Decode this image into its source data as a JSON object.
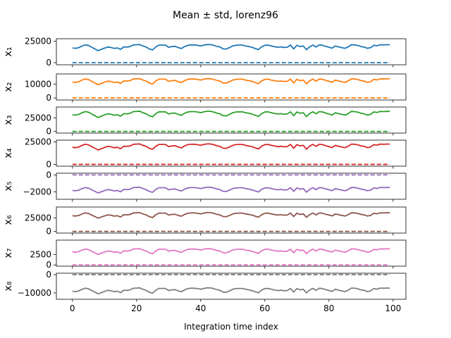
{
  "title": "Mean ± std, lorenz96",
  "xlabel": "Integration time index",
  "x_ticks": [
    0,
    20,
    40,
    60,
    80,
    100
  ],
  "colors": {
    "x1": "#1f77b4",
    "x2": "#ff7f0e",
    "x3": "#2ca02c",
    "x4": "#d62728",
    "x5": "#9467bd",
    "x6": "#8c564b",
    "x7": "#e377c2",
    "x8": "#7f7f7f"
  },
  "chart_data": {
    "type": "line",
    "x_range": [
      0,
      99
    ],
    "xlim": [
      -5,
      104
    ],
    "pattern": [
      0.4,
      0.36,
      0.44,
      0.62,
      0.74,
      0.68,
      0.48,
      0.3,
      0.1,
      0.24,
      0.38,
      0.5,
      0.46,
      0.35,
      0.4,
      0.24,
      0.52,
      0.5,
      0.56,
      0.74,
      0.76,
      0.78,
      0.62,
      0.5,
      0.28,
      0.18,
      0.52,
      0.72,
      0.72,
      0.72,
      0.48,
      0.56,
      0.58,
      0.44,
      0.34,
      0.56,
      0.7,
      0.74,
      0.74,
      0.7,
      0.62,
      0.72,
      0.78,
      0.78,
      0.7,
      0.58,
      0.5,
      0.3,
      0.28,
      0.44,
      0.62,
      0.7,
      0.72,
      0.72,
      0.62,
      0.56,
      0.48,
      0.34,
      0.22,
      0.52,
      0.7,
      0.72,
      0.62,
      0.55,
      0.48,
      0.52,
      0.46,
      0.48,
      0.72,
      0.3,
      0.7,
      0.56,
      0.62,
      0.2,
      0.54,
      0.72,
      0.5,
      0.74,
      0.7,
      0.58,
      0.48,
      0.38,
      0.62,
      0.52,
      0.44,
      0.36,
      0.52,
      0.76,
      0.74,
      0.68,
      0.56,
      0.5,
      0.36,
      0.44,
      0.7,
      0.64,
      0.76,
      0.74,
      0.76,
      0.76
    ],
    "series": [
      {
        "label": "x₁",
        "ylim": [
          -2500,
          28000
        ],
        "yticks": [
          0,
          25000
        ],
        "min": 13000,
        "max": 23500,
        "base": 0
      },
      {
        "label": "x₂",
        "ylim": [
          -1500,
          17500
        ],
        "yticks": [
          0,
          10000
        ],
        "min": 9000,
        "max": 15500,
        "base": 0
      },
      {
        "label": "x₃",
        "ylim": [
          -3000,
          45000
        ],
        "yticks": [
          0,
          25000
        ],
        "min": 24000,
        "max": 41000,
        "base": 0
      },
      {
        "label": "x₄",
        "ylim": [
          -2000,
          27000
        ],
        "yticks": [
          0,
          25000
        ],
        "min": 15000,
        "max": 25000,
        "base": 0
      },
      {
        "label": "x₅",
        "ylim": [
          -2900,
          200
        ],
        "yticks": [
          0,
          -2000
        ],
        "min": -2250,
        "max": -1250,
        "base": 0
      },
      {
        "label": "x₆",
        "ylim": [
          -3000,
          45000
        ],
        "yticks": [
          0,
          25000
        ],
        "min": 23000,
        "max": 38000,
        "base": 0
      },
      {
        "label": "x₇",
        "ylim": [
          -300,
          5900
        ],
        "yticks": [
          0,
          2500
        ],
        "min": 2300,
        "max": 4300,
        "base": 0
      },
      {
        "label": "x₈",
        "ylim": [
          -13500,
          800
        ],
        "yticks": [
          0,
          -10000
        ],
        "min": -11000,
        "max": -6200,
        "base": 0
      }
    ]
  }
}
